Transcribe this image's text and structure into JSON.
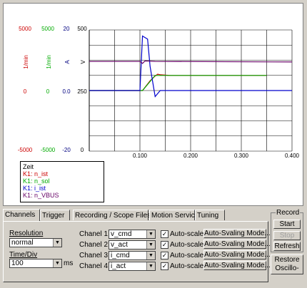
{
  "axes": {
    "col1": [
      "5000",
      "0",
      "-5000"
    ],
    "col2": [
      "5000",
      "0",
      "-5000"
    ],
    "col3": [
      "20",
      "0.0",
      "-20"
    ],
    "col4": [
      "500",
      "250",
      "0"
    ],
    "units": [
      "1/min",
      "1/min",
      "A",
      "V"
    ],
    "x_ticks": [
      "0.100",
      "0.200",
      "0.300",
      "0.400"
    ]
  },
  "colors": {
    "n_ist": "#cc0000",
    "n_sol": "#00aa00",
    "i_ist": "#0000cc",
    "vbus": "#660066",
    "col3": "#000080",
    "col4": "#000000"
  },
  "legend": {
    "title": "Zeit",
    "items": [
      "K1: n_ist",
      "K1: n_sol",
      "K1: i_ist",
      "K1: n_VBUS"
    ]
  },
  "chart_data": {
    "type": "line",
    "xlabel": "",
    "ylabel": "",
    "xlim": [
      0,
      0.4
    ],
    "x_ticks": [
      0.1,
      0.2,
      0.3,
      0.4
    ],
    "series": [
      {
        "name": "K1: n_ist",
        "color": "#cc0000",
        "y_axis": "1/min",
        "points": [
          [
            0,
            0
          ],
          [
            0.105,
            0
          ],
          [
            0.12,
            800
          ],
          [
            0.13,
            1200
          ],
          [
            0.135,
            1350
          ],
          [
            0.14,
            1300
          ],
          [
            0.16,
            1250
          ],
          [
            0.35,
            1250
          ]
        ]
      },
      {
        "name": "K1: n_sol",
        "color": "#00aa00",
        "points": [
          [
            0,
            0
          ],
          [
            0.105,
            0
          ],
          [
            0.13,
            1250
          ],
          [
            0.35,
            1250
          ]
        ]
      },
      {
        "name": "K1: i_ist",
        "color": "#0000cc",
        "y_axis": "A",
        "points": [
          [
            0,
            0
          ],
          [
            0.1,
            0
          ],
          [
            0.105,
            18
          ],
          [
            0.115,
            17
          ],
          [
            0.12,
            8
          ],
          [
            0.13,
            -2
          ],
          [
            0.14,
            0
          ],
          [
            0.2,
            0
          ],
          [
            0.4,
            0
          ]
        ]
      },
      {
        "name": "K1: n_VBUS",
        "color": "#660066",
        "y_axis": "V",
        "points": [
          [
            0,
            370
          ],
          [
            0.1,
            370
          ],
          [
            0.105,
            362
          ],
          [
            0.11,
            372
          ],
          [
            0.13,
            370
          ],
          [
            0.4,
            368
          ]
        ]
      }
    ]
  },
  "tabs": [
    "Channels",
    "Trigger",
    "Recording / Scope Files",
    "Motion Service",
    "Tuning"
  ],
  "settings": {
    "resolution_label": "Resolution",
    "resolution_value": "normal",
    "timediv_label": "Time/Div",
    "timediv_value": "100",
    "timediv_unit": "ms"
  },
  "channels": [
    {
      "label": "Chanel 1",
      "value": "v_cmd",
      "autoscale": "Auto-scale",
      "mode": "Auto-Svaling Mode..."
    },
    {
      "label": "Chanel 2",
      "value": "v_act",
      "autoscale": "Auto-scale",
      "mode": "Auto-Svaling Mode..."
    },
    {
      "label": "Chanel 3",
      "value": "i_cmd",
      "autoscale": "Auto-scale",
      "mode": "Auto-Svaling Mode..."
    },
    {
      "label": "Chanel 4",
      "value": "i_act",
      "autoscale": "Auto-scale",
      "mode": "Auto-Svaling Mode..."
    }
  ],
  "record": {
    "title": "Record",
    "start": "Start",
    "stop": "Stop",
    "refresh": "Refresh",
    "restore_line1": "Restore",
    "restore_line2": "Oscillo-"
  }
}
